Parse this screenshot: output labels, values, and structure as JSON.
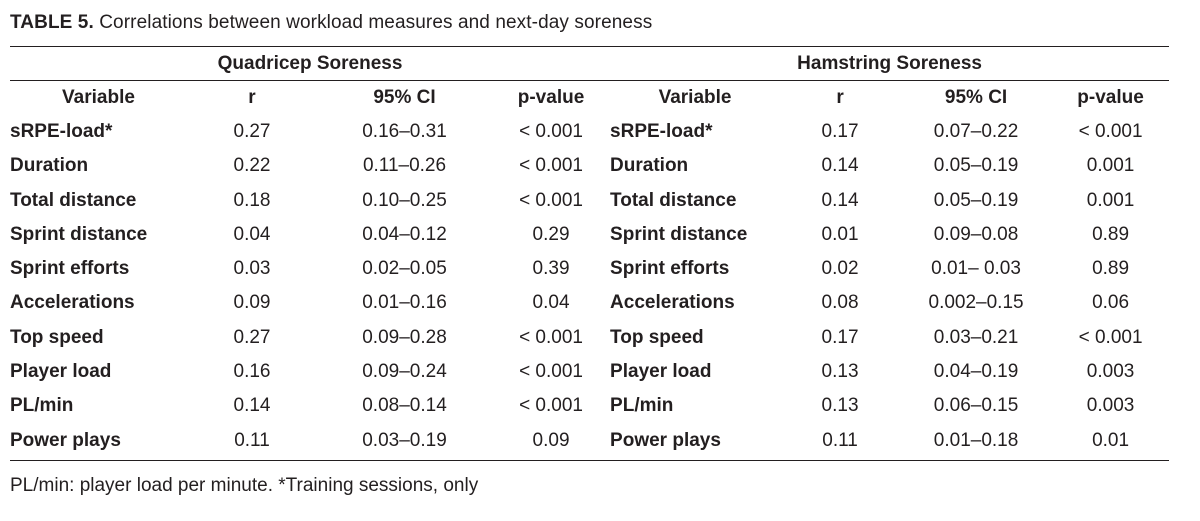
{
  "caption": {
    "label": "TABLE 5.",
    "text": "Correlations between workload measures and next-day soreness"
  },
  "groups": {
    "left": "Quadricep Soreness",
    "right": "Hamstring Soreness"
  },
  "columns": [
    "Variable",
    "r",
    "95% CI",
    "p-value"
  ],
  "rows": [
    {
      "q": [
        "sRPE-load*",
        "0.27",
        "0.16–0.31",
        "< 0.001"
      ],
      "h": [
        "sRPE-load*",
        "0.17",
        "0.07–0.22",
        "< 0.001"
      ]
    },
    {
      "q": [
        "Duration",
        "0.22",
        "0.11–0.26",
        "< 0.001"
      ],
      "h": [
        "Duration",
        "0.14",
        "0.05–0.19",
        "0.001"
      ]
    },
    {
      "q": [
        "Total distance",
        "0.18",
        "0.10–0.25",
        "< 0.001"
      ],
      "h": [
        "Total distance",
        "0.14",
        "0.05–0.19",
        "0.001"
      ]
    },
    {
      "q": [
        "Sprint distance",
        "0.04",
        "0.04–0.12",
        "0.29"
      ],
      "h": [
        "Sprint distance",
        "0.01",
        "0.09–0.08",
        "0.89"
      ]
    },
    {
      "q": [
        "Sprint efforts",
        "0.03",
        "0.02–0.05",
        "0.39"
      ],
      "h": [
        "Sprint efforts",
        "0.02",
        "0.01– 0.03",
        "0.89"
      ]
    },
    {
      "q": [
        "Accelerations",
        "0.09",
        "0.01–0.16",
        "0.04"
      ],
      "h": [
        "Accelerations",
        "0.08",
        "0.002–0.15",
        "0.06"
      ]
    },
    {
      "q": [
        "Top speed",
        "0.27",
        "0.09–0.28",
        "< 0.001"
      ],
      "h": [
        "Top speed",
        "0.17",
        "0.03–0.21",
        "< 0.001"
      ]
    },
    {
      "q": [
        "Player load",
        "0.16",
        "0.09–0.24",
        "< 0.001"
      ],
      "h": [
        "Player load",
        "0.13",
        "0.04–0.19",
        "0.003"
      ]
    },
    {
      "q": [
        "PL/min",
        "0.14",
        "0.08–0.14",
        "< 0.001"
      ],
      "h": [
        "PL/min",
        "0.13",
        "0.06–0.15",
        "0.003"
      ]
    },
    {
      "q": [
        "Power plays",
        "0.11",
        "0.03–0.19",
        "0.09"
      ],
      "h": [
        "Power plays",
        "0.11",
        "0.01–0.18",
        "0.01"
      ]
    }
  ],
  "footnote": "PL/min: player load per minute. *Training sessions, only"
}
